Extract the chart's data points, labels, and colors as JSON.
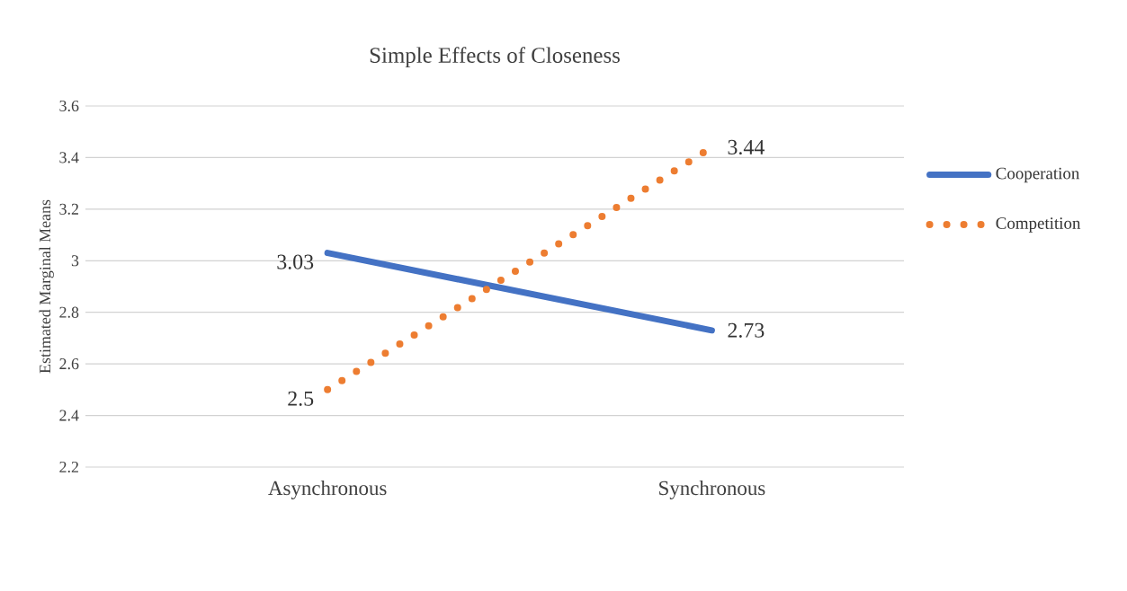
{
  "chart_data": {
    "type": "line",
    "title": "Simple Effects of Closeness",
    "ylabel": "Estimated Marginal Means",
    "categories": [
      "Asynchronous",
      "Synchronous"
    ],
    "series": [
      {
        "name": "Cooperation",
        "color": "#4472c4",
        "line_style": "solid",
        "values": [
          3.03,
          2.73
        ]
      },
      {
        "name": "Competition",
        "color": "#ed7d31",
        "line_style": "dotted",
        "values": [
          2.5,
          3.44
        ]
      }
    ],
    "ylim": [
      2.2,
      3.6
    ],
    "yticks": [
      2.2,
      2.4,
      2.6,
      2.8,
      3,
      3.2,
      3.4,
      3.6
    ],
    "grid": "y",
    "legend": "right",
    "data_labels": true
  }
}
